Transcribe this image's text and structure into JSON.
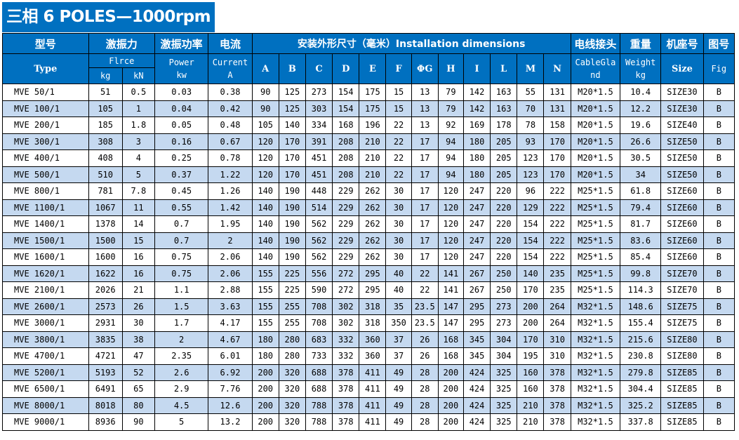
{
  "title": "三相 6 POLES—1000rpm",
  "colors": {
    "header": "#0070c0",
    "alt_row": "#c5d9f0"
  },
  "header": {
    "type_cn": "型号",
    "type_en": "Type",
    "force_cn": "激振力",
    "force_en": "Flrce",
    "kg": "kg",
    "kn": "kN",
    "power_cn": "激振功率",
    "power_en": "Power",
    "power_unit": "kw",
    "current_cn": "电流",
    "current_en": "Current",
    "current_unit": "A",
    "dims_cn": "安装外形尺寸（毫米）Installation dimensions",
    "dims": [
      "A",
      "B",
      "C",
      "D",
      "E",
      "F",
      "ΦG",
      "H",
      "I",
      "L",
      "M",
      "N"
    ],
    "cable_cn": "电线接头",
    "cable_en_1": "CableGla",
    "cable_en_2": "nd",
    "weight_cn": "重量",
    "weight_en": "Weight",
    "weight_unit": "kg",
    "size_cn": "机座号",
    "size_en": "Size",
    "fig_cn": "图号",
    "fig_en": "Fig"
  },
  "rows": [
    [
      "MVE 50/1",
      "51",
      "0.5",
      "0.03",
      "0.38",
      "90",
      "125",
      "273",
      "154",
      "175",
      "15",
      "13",
      "79",
      "142",
      "163",
      "55",
      "131",
      "M20*1.5",
      "10.4",
      "SIZE30",
      "B"
    ],
    [
      "MVE 100/1",
      "105",
      "1",
      "0.04",
      "0.42",
      "90",
      "125",
      "303",
      "154",
      "175",
      "15",
      "13",
      "79",
      "142",
      "163",
      "70",
      "131",
      "M20*1.5",
      "12.2",
      "SIZE30",
      "B"
    ],
    [
      "MVE 200/1",
      "185",
      "1.8",
      "0.05",
      "0.48",
      "105",
      "140",
      "334",
      "168",
      "196",
      "22",
      "13",
      "92",
      "169",
      "178",
      "78",
      "158",
      "M20*1.5",
      "19.6",
      "SIZE40",
      "B"
    ],
    [
      "MVE 300/1",
      "308",
      "3",
      "0.16",
      "0.67",
      "120",
      "170",
      "391",
      "208",
      "210",
      "22",
      "17",
      "94",
      "180",
      "205",
      "93",
      "170",
      "M20*1.5",
      "26.6",
      "SIZE50",
      "B"
    ],
    [
      "MVE 400/1",
      "408",
      "4",
      "0.25",
      "0.78",
      "120",
      "170",
      "451",
      "208",
      "210",
      "22",
      "17",
      "94",
      "180",
      "205",
      "123",
      "170",
      "M20*1.5",
      "30.5",
      "SIZE50",
      "B"
    ],
    [
      "MVE 500/1",
      "510",
      "5",
      "0.37",
      "1.22",
      "120",
      "170",
      "451",
      "208",
      "210",
      "22",
      "17",
      "94",
      "180",
      "205",
      "123",
      "170",
      "M20*1.5",
      "34",
      "SIZE50",
      "B"
    ],
    [
      "MVE 800/1",
      "781",
      "7.8",
      "0.45",
      "1.26",
      "140",
      "190",
      "448",
      "229",
      "262",
      "30",
      "17",
      "120",
      "247",
      "220",
      "96",
      "222",
      "M25*1.5",
      "61.8",
      "SIZE60",
      "B"
    ],
    [
      "MVE 1100/1",
      "1067",
      "11",
      "0.55",
      "1.42",
      "140",
      "190",
      "514",
      "229",
      "262",
      "30",
      "17",
      "120",
      "247",
      "220",
      "129",
      "222",
      "M25*1.5",
      "79.4",
      "SIZE60",
      "B"
    ],
    [
      "MVE 1400/1",
      "1378",
      "14",
      "0.7",
      "1.95",
      "140",
      "190",
      "562",
      "229",
      "262",
      "30",
      "17",
      "120",
      "247",
      "220",
      "154",
      "222",
      "M25*1.5",
      "81.7",
      "SIZE60",
      "B"
    ],
    [
      "MVE 1500/1",
      "1500",
      "15",
      "0.7",
      "2",
      "140",
      "190",
      "562",
      "229",
      "262",
      "30",
      "17",
      "120",
      "247",
      "220",
      "154",
      "222",
      "M25*1.5",
      "83.6",
      "SIZE60",
      "B"
    ],
    [
      "MVE 1600/1",
      "1600",
      "16",
      "0.75",
      "2.06",
      "140",
      "190",
      "562",
      "229",
      "262",
      "30",
      "17",
      "120",
      "247",
      "220",
      "154",
      "222",
      "M25*1.5",
      "85.4",
      "SIZE60",
      "B"
    ],
    [
      "MVE 1620/1",
      "1622",
      "16",
      "0.75",
      "2.06",
      "155",
      "225",
      "556",
      "272",
      "295",
      "40",
      "22",
      "141",
      "267",
      "250",
      "140",
      "235",
      "M25*1.5",
      "99.8",
      "SIZE70",
      "B"
    ],
    [
      "MVE 2100/1",
      "2026",
      "21",
      "1.1",
      "2.88",
      "155",
      "225",
      "590",
      "272",
      "295",
      "40",
      "22",
      "141",
      "267",
      "250",
      "170",
      "235",
      "M25*1.5",
      "114.3",
      "SIZE70",
      "B"
    ],
    [
      "MVE 2600/1",
      "2573",
      "26",
      "1.5",
      "3.63",
      "155",
      "255",
      "708",
      "302",
      "318",
      "35",
      "23.5",
      "147",
      "295",
      "273",
      "200",
      "264",
      "M32*1.5",
      "148.6",
      "SIZE75",
      "B"
    ],
    [
      "MVE 3000/1",
      "2931",
      "30",
      "1.7",
      "4.17",
      "155",
      "255",
      "708",
      "302",
      "318",
      "350",
      "23.5",
      "147",
      "295",
      "273",
      "200",
      "264",
      "M32*1.5",
      "155.4",
      "SIZE75",
      "B"
    ],
    [
      "MVE 3800/1",
      "3835",
      "38",
      "2",
      "4.67",
      "180",
      "280",
      "683",
      "332",
      "360",
      "37",
      "26",
      "168",
      "345",
      "304",
      "170",
      "310",
      "M32*1.5",
      "215.6",
      "SIZE80",
      "B"
    ],
    [
      "MVE 4700/1",
      "4721",
      "47",
      "2.35",
      "6.01",
      "180",
      "280",
      "733",
      "332",
      "360",
      "37",
      "26",
      "168",
      "345",
      "304",
      "195",
      "310",
      "M32*1.5",
      "230.8",
      "SIZE80",
      "B"
    ],
    [
      "MVE 5200/1",
      "5193",
      "52",
      "2.6",
      "6.92",
      "200",
      "320",
      "688",
      "378",
      "411",
      "49",
      "28",
      "200",
      "424",
      "325",
      "160",
      "378",
      "M32*1.5",
      "279.8",
      "SIZE85",
      "B"
    ],
    [
      "MVE 6500/1",
      "6491",
      "65",
      "2.9",
      "7.76",
      "200",
      "320",
      "688",
      "378",
      "411",
      "49",
      "28",
      "200",
      "424",
      "325",
      "160",
      "378",
      "M32*1.5",
      "304.4",
      "SIZE85",
      "B"
    ],
    [
      "MVE 8000/1",
      "8018",
      "80",
      "4.5",
      "12.6",
      "200",
      "320",
      "788",
      "378",
      "411",
      "49",
      "28",
      "200",
      "424",
      "325",
      "210",
      "378",
      "M32*1.5",
      "325.2",
      "SIZE85",
      "B"
    ],
    [
      "MVE 9000/1",
      "8936",
      "90",
      "5",
      "13.2",
      "200",
      "320",
      "788",
      "378",
      "411",
      "49",
      "28",
      "200",
      "424",
      "325",
      "210",
      "378",
      "M32*1.5",
      "337.8",
      "SIZE85",
      "B"
    ]
  ]
}
